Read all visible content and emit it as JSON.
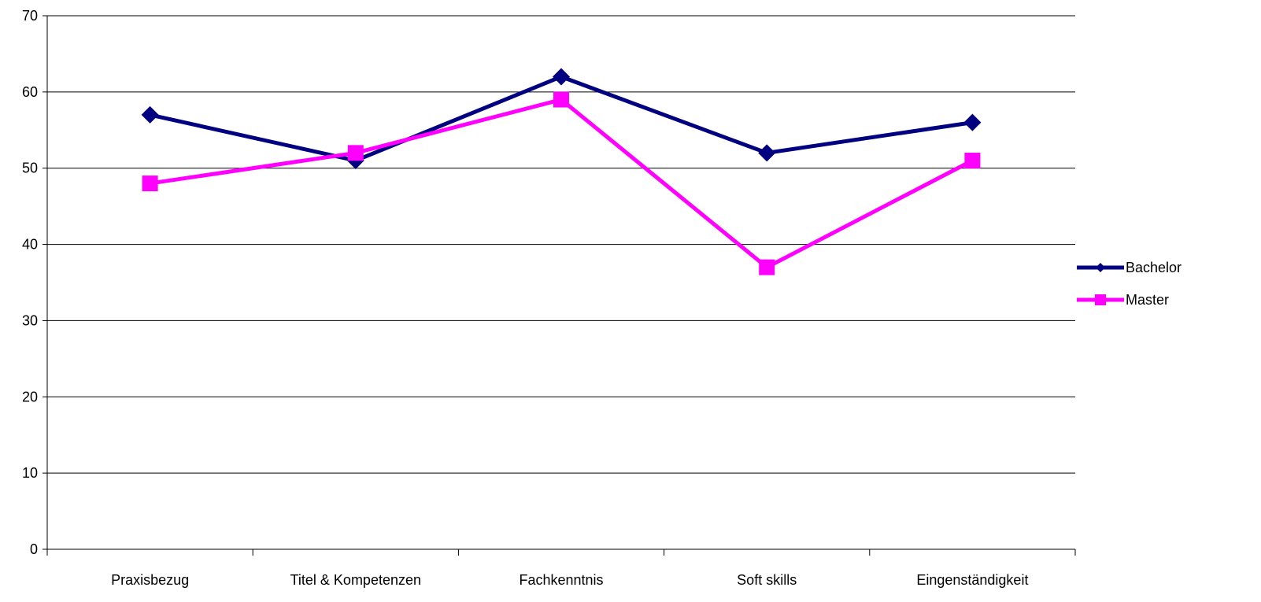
{
  "chart_data": {
    "type": "line",
    "title": "",
    "xlabel": "",
    "ylabel": "",
    "categories": [
      "Praxisbezug",
      "Titel & Kompetenzen",
      "Fachkenntnis",
      "Soft skills",
      "Eingenständigkeit"
    ],
    "ylim": [
      0,
      70
    ],
    "yticks": [
      "0",
      "10",
      "20",
      "30",
      "40",
      "50",
      "60",
      "70"
    ],
    "grid": true,
    "legend_position": "right",
    "series": [
      {
        "name": "Bachelor",
        "values": [
          57,
          51,
          62,
          52,
          56
        ],
        "color": "#000080",
        "marker": "diamond"
      },
      {
        "name": "Master",
        "values": [
          48,
          52,
          59,
          37,
          51
        ],
        "color": "#ff00ff",
        "marker": "square"
      }
    ]
  }
}
